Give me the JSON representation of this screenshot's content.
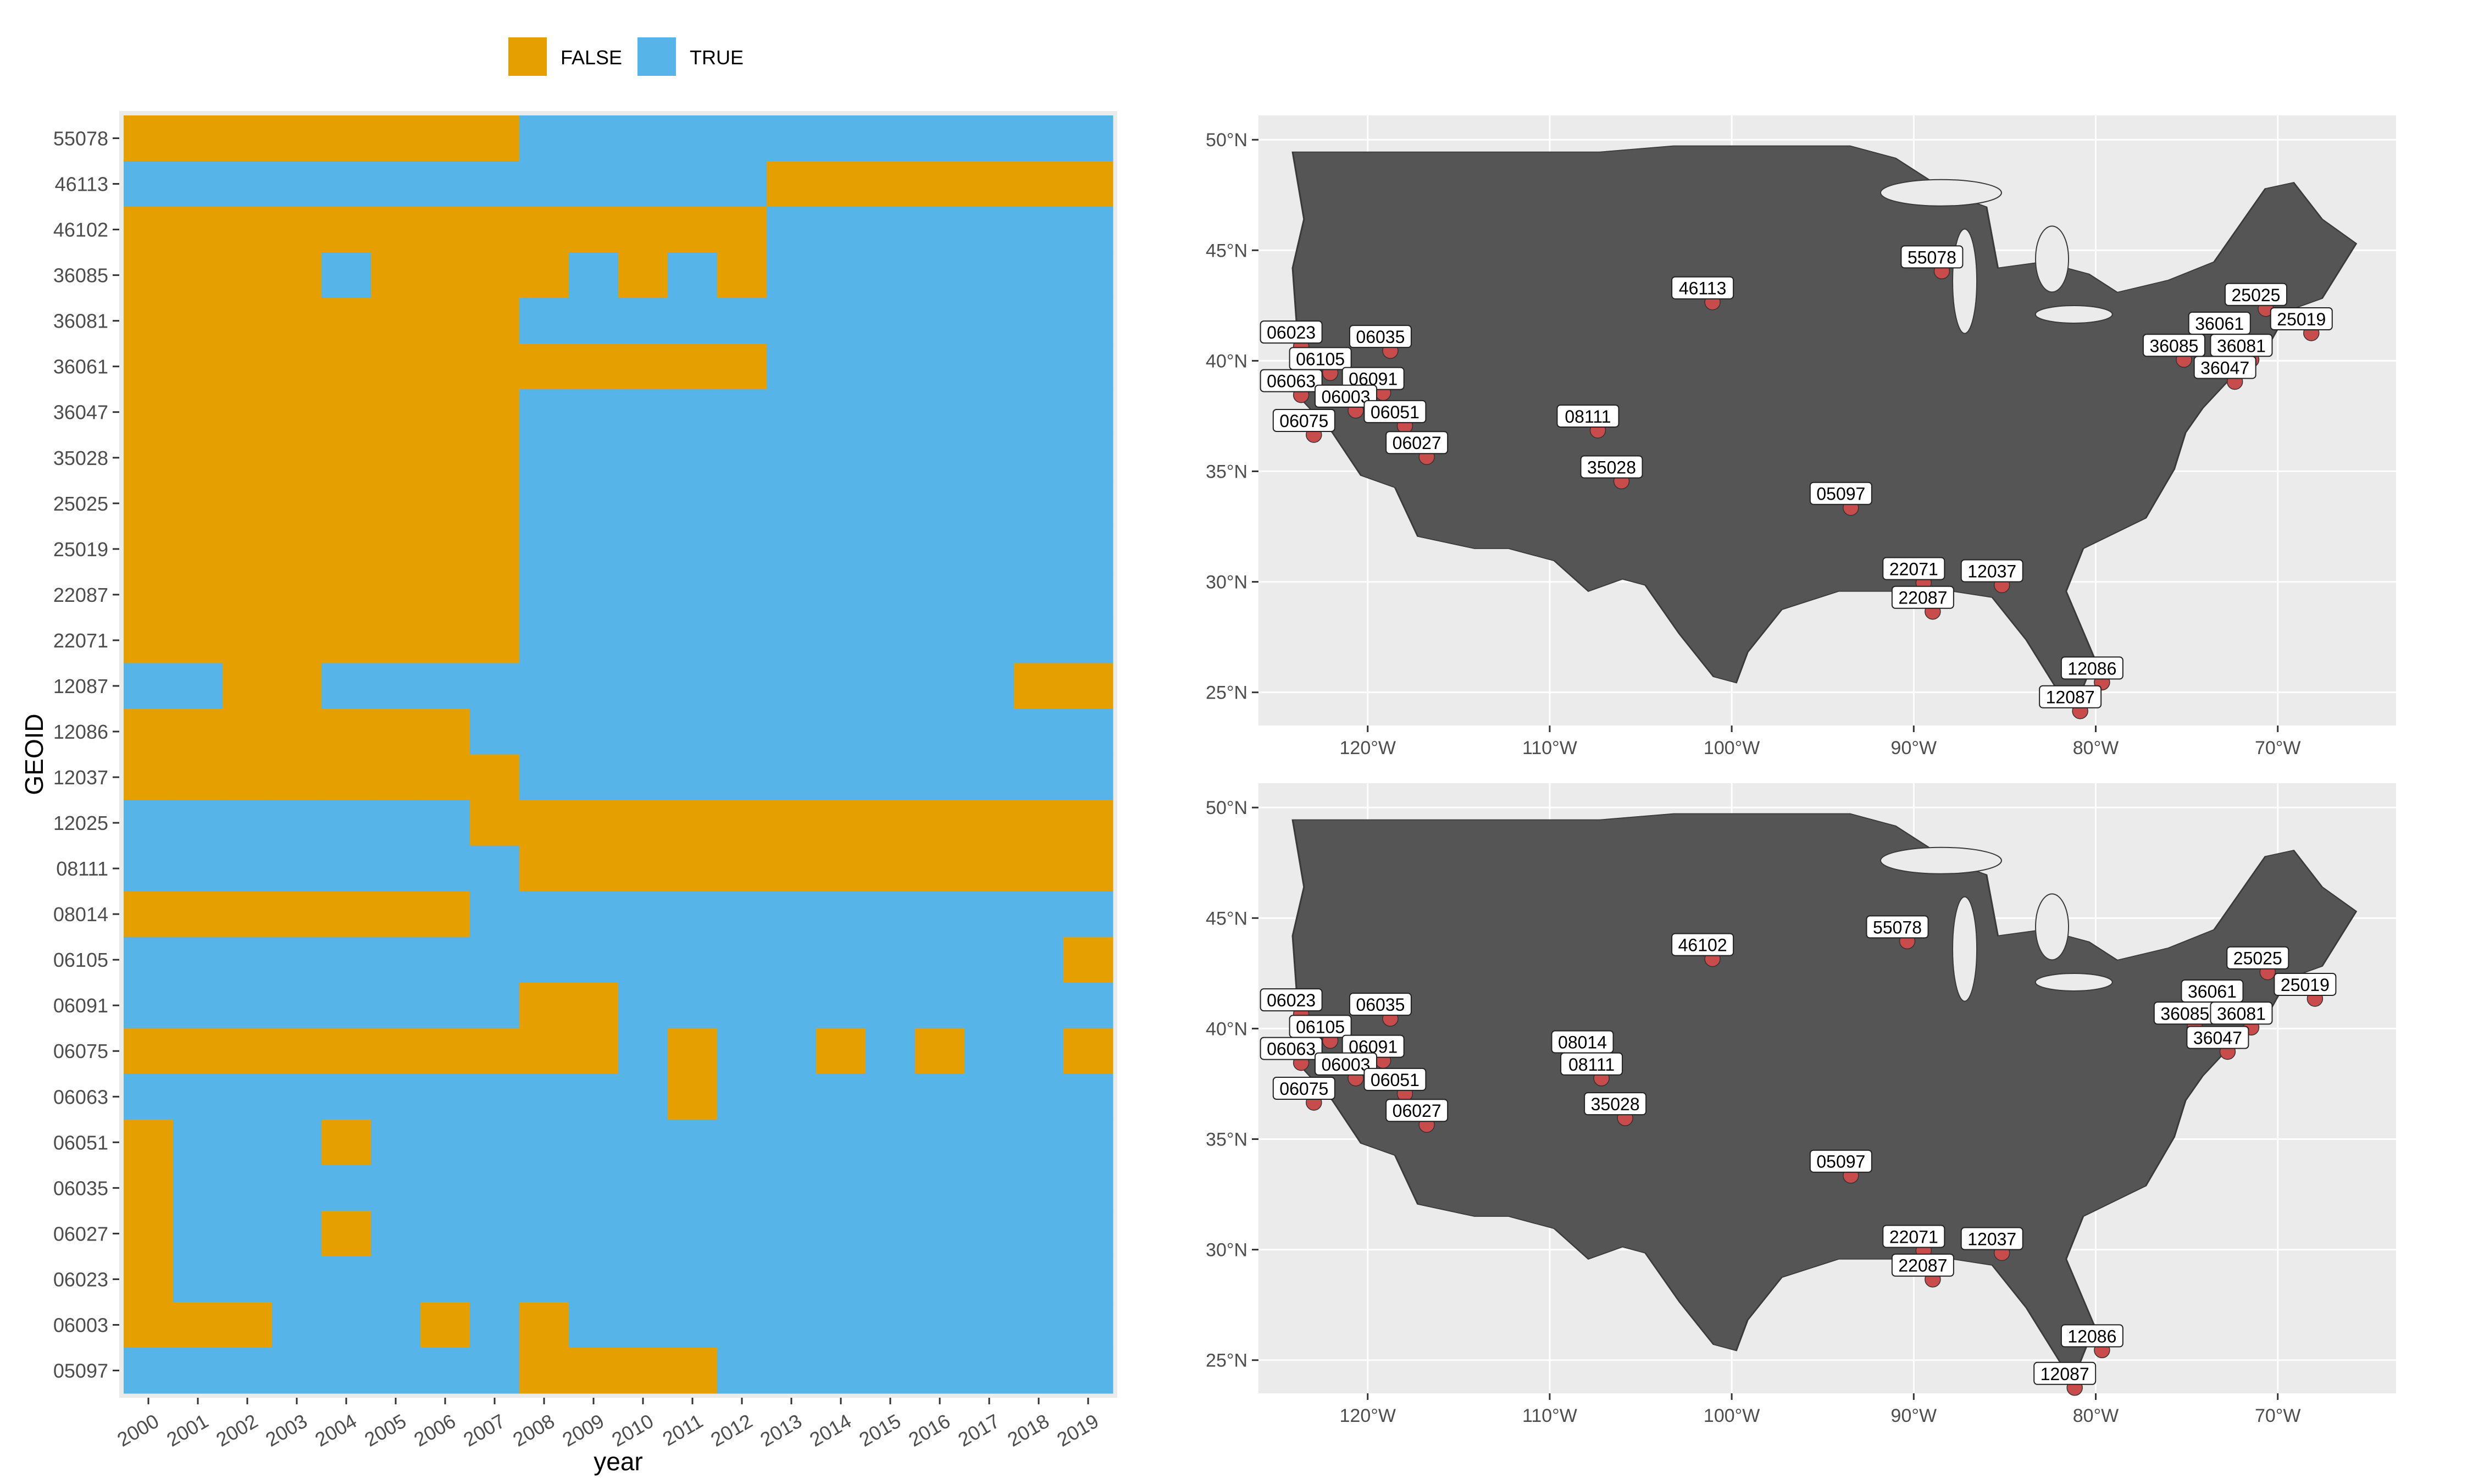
{
  "chart_data": [
    {
      "type": "heatmap",
      "xlabel": "year",
      "ylabel": "GEOID",
      "x": [
        "2000",
        "2001",
        "2002",
        "2003",
        "2004",
        "2005",
        "2006",
        "2007",
        "2008",
        "2009",
        "2010",
        "2011",
        "2012",
        "2013",
        "2014",
        "2015",
        "2016",
        "2017",
        "2018",
        "2019"
      ],
      "y": [
        "55078",
        "46113",
        "46102",
        "36085",
        "36081",
        "36061",
        "36047",
        "35028",
        "25025",
        "25019",
        "22087",
        "22071",
        "12087",
        "12086",
        "12037",
        "12025",
        "08111",
        "08014",
        "06105",
        "06091",
        "06075",
        "06063",
        "06051",
        "06035",
        "06027",
        "06023",
        "06003",
        "05097"
      ],
      "legend": {
        "position": "top",
        "entries": [
          "FALSE",
          "TRUE"
        ]
      },
      "colors": {
        "FALSE": "#E69F00",
        "TRUE": "#56B4E9"
      },
      "values": [
        [
          0,
          0,
          0,
          0,
          0,
          0,
          0,
          0,
          1,
          1,
          1,
          1,
          1,
          1,
          1,
          1,
          1,
          1,
          1,
          1
        ],
        [
          1,
          1,
          1,
          1,
          1,
          1,
          1,
          1,
          1,
          1,
          1,
          1,
          1,
          0,
          0,
          0,
          0,
          0,
          0,
          0
        ],
        [
          0,
          0,
          0,
          0,
          0,
          0,
          0,
          0,
          0,
          0,
          0,
          0,
          0,
          1,
          1,
          1,
          1,
          1,
          1,
          1
        ],
        [
          0,
          0,
          0,
          0,
          1,
          0,
          0,
          0,
          0,
          1,
          0,
          1,
          0,
          1,
          1,
          1,
          1,
          1,
          1,
          1
        ],
        [
          0,
          0,
          0,
          0,
          0,
          0,
          0,
          0,
          1,
          1,
          1,
          1,
          1,
          1,
          1,
          1,
          1,
          1,
          1,
          1
        ],
        [
          0,
          0,
          0,
          0,
          0,
          0,
          0,
          0,
          0,
          0,
          0,
          0,
          0,
          1,
          1,
          1,
          1,
          1,
          1,
          1
        ],
        [
          0,
          0,
          0,
          0,
          0,
          0,
          0,
          0,
          1,
          1,
          1,
          1,
          1,
          1,
          1,
          1,
          1,
          1,
          1,
          1
        ],
        [
          0,
          0,
          0,
          0,
          0,
          0,
          0,
          0,
          1,
          1,
          1,
          1,
          1,
          1,
          1,
          1,
          1,
          1,
          1,
          1
        ],
        [
          0,
          0,
          0,
          0,
          0,
          0,
          0,
          0,
          1,
          1,
          1,
          1,
          1,
          1,
          1,
          1,
          1,
          1,
          1,
          1
        ],
        [
          0,
          0,
          0,
          0,
          0,
          0,
          0,
          0,
          1,
          1,
          1,
          1,
          1,
          1,
          1,
          1,
          1,
          1,
          1,
          1
        ],
        [
          0,
          0,
          0,
          0,
          0,
          0,
          0,
          0,
          1,
          1,
          1,
          1,
          1,
          1,
          1,
          1,
          1,
          1,
          1,
          1
        ],
        [
          0,
          0,
          0,
          0,
          0,
          0,
          0,
          0,
          1,
          1,
          1,
          1,
          1,
          1,
          1,
          1,
          1,
          1,
          1,
          1
        ],
        [
          1,
          1,
          0,
          0,
          1,
          1,
          1,
          1,
          1,
          1,
          1,
          1,
          1,
          1,
          1,
          1,
          1,
          1,
          0,
          0
        ],
        [
          0,
          0,
          0,
          0,
          0,
          0,
          0,
          1,
          1,
          1,
          1,
          1,
          1,
          1,
          1,
          1,
          1,
          1,
          1,
          1
        ],
        [
          0,
          0,
          0,
          0,
          0,
          0,
          0,
          0,
          1,
          1,
          1,
          1,
          1,
          1,
          1,
          1,
          1,
          1,
          1,
          1
        ],
        [
          1,
          1,
          1,
          1,
          1,
          1,
          1,
          0,
          0,
          0,
          0,
          0,
          0,
          0,
          0,
          0,
          0,
          0,
          0,
          0
        ],
        [
          1,
          1,
          1,
          1,
          1,
          1,
          1,
          1,
          0,
          0,
          0,
          0,
          0,
          0,
          0,
          0,
          0,
          0,
          0,
          0
        ],
        [
          0,
          0,
          0,
          0,
          0,
          0,
          0,
          1,
          1,
          1,
          1,
          1,
          1,
          1,
          1,
          1,
          1,
          1,
          1,
          1
        ],
        [
          1,
          1,
          1,
          1,
          1,
          1,
          1,
          1,
          1,
          1,
          1,
          1,
          1,
          1,
          1,
          1,
          1,
          1,
          1,
          0
        ],
        [
          1,
          1,
          1,
          1,
          1,
          1,
          1,
          1,
          0,
          0,
          1,
          1,
          1,
          1,
          1,
          1,
          1,
          1,
          1,
          1
        ],
        [
          0,
          0,
          0,
          0,
          0,
          0,
          0,
          0,
          0,
          0,
          1,
          0,
          1,
          1,
          0,
          1,
          0,
          1,
          1,
          0
        ],
        [
          1,
          1,
          1,
          1,
          1,
          1,
          1,
          1,
          1,
          1,
          1,
          0,
          1,
          1,
          1,
          1,
          1,
          1,
          1,
          1
        ],
        [
          0,
          1,
          1,
          1,
          0,
          1,
          1,
          1,
          1,
          1,
          1,
          1,
          1,
          1,
          1,
          1,
          1,
          1,
          1,
          1
        ],
        [
          0,
          1,
          1,
          1,
          1,
          1,
          1,
          1,
          1,
          1,
          1,
          1,
          1,
          1,
          1,
          1,
          1,
          1,
          1,
          1
        ],
        [
          0,
          1,
          1,
          1,
          0,
          1,
          1,
          1,
          1,
          1,
          1,
          1,
          1,
          1,
          1,
          1,
          1,
          1,
          1,
          1
        ],
        [
          0,
          1,
          1,
          1,
          1,
          1,
          1,
          1,
          1,
          1,
          1,
          1,
          1,
          1,
          1,
          1,
          1,
          1,
          1,
          1
        ],
        [
          0,
          0,
          0,
          1,
          1,
          1,
          0,
          1,
          0,
          1,
          1,
          1,
          1,
          1,
          1,
          1,
          1,
          1,
          1,
          1
        ],
        [
          1,
          1,
          1,
          1,
          1,
          1,
          1,
          1,
          0,
          0,
          0,
          0,
          1,
          1,
          1,
          1,
          1,
          1,
          1,
          1
        ]
      ]
    },
    {
      "type": "map",
      "x_ticks": [
        -120,
        -110,
        -100,
        -90,
        -80,
        -70
      ],
      "x_tick_labels": [
        "120°W",
        "110°W",
        "100°W",
        "90°W",
        "80°W",
        "70°W"
      ],
      "y_ticks": [
        25,
        30,
        35,
        40,
        45,
        50
      ],
      "y_tick_labels": [
        "25°N",
        "30°N",
        "35°N",
        "40°N",
        "45°N",
        "50°N"
      ],
      "xlim": [
        -126,
        -63.5
      ],
      "ylim": [
        23.5,
        51.1
      ],
      "highlight_color": "#C94C4C",
      "labels": [
        {
          "text": "55078",
          "lon": -89.0,
          "lat": 44.7
        },
        {
          "text": "46113",
          "lon": -101.6,
          "lat": 43.3
        },
        {
          "text": "06023",
          "lon": -124.2,
          "lat": 41.3
        },
        {
          "text": "06035",
          "lon": -119.3,
          "lat": 41.1
        },
        {
          "text": "06105",
          "lon": -122.6,
          "lat": 40.1
        },
        {
          "text": "06091",
          "lon": -119.7,
          "lat": 39.2
        },
        {
          "text": "06063",
          "lon": -124.2,
          "lat": 39.1
        },
        {
          "text": "06003",
          "lon": -121.2,
          "lat": 38.4
        },
        {
          "text": "06051",
          "lon": -118.5,
          "lat": 37.7
        },
        {
          "text": "06075",
          "lon": -123.5,
          "lat": 37.3
        },
        {
          "text": "06027",
          "lon": -117.3,
          "lat": 36.3
        },
        {
          "text": "08111",
          "lon": -107.9,
          "lat": 37.5
        },
        {
          "text": "35028",
          "lon": -106.6,
          "lat": 35.2
        },
        {
          "text": "05097",
          "lon": -94.0,
          "lat": 34.0
        },
        {
          "text": "22071",
          "lon": -90.0,
          "lat": 30.6
        },
        {
          "text": "22087",
          "lon": -89.5,
          "lat": 29.3
        },
        {
          "text": "12037",
          "lon": -85.7,
          "lat": 30.5
        },
        {
          "text": "12086",
          "lon": -80.2,
          "lat": 26.1
        },
        {
          "text": "12087",
          "lon": -81.4,
          "lat": 24.8
        },
        {
          "text": "25025",
          "lon": -71.2,
          "lat": 43.0
        },
        {
          "text": "25019",
          "lon": -68.7,
          "lat": 41.9
        },
        {
          "text": "36061",
          "lon": -73.2,
          "lat": 41.7
        },
        {
          "text": "36085",
          "lon": -75.7,
          "lat": 40.7
        },
        {
          "text": "36081",
          "lon": -72.0,
          "lat": 40.7
        },
        {
          "text": "36047",
          "lon": -72.9,
          "lat": 39.7
        }
      ]
    },
    {
      "type": "map",
      "x_ticks": [
        -120,
        -110,
        -100,
        -90,
        -80,
        -70
      ],
      "x_tick_labels": [
        "120°W",
        "110°W",
        "100°W",
        "90°W",
        "80°W",
        "70°W"
      ],
      "y_ticks": [
        25,
        30,
        35,
        40,
        45,
        50
      ],
      "y_tick_labels": [
        "25°N",
        "30°N",
        "35°N",
        "40°N",
        "45°N",
        "50°N"
      ],
      "xlim": [
        -126,
        -63.5
      ],
      "ylim": [
        23.5,
        51.1
      ],
      "highlight_color": "#C94C4C",
      "labels": [
        {
          "text": "55078",
          "lon": -90.9,
          "lat": 44.6
        },
        {
          "text": "46102",
          "lon": -101.6,
          "lat": 43.8
        },
        {
          "text": "06023",
          "lon": -124.2,
          "lat": 41.3
        },
        {
          "text": "06035",
          "lon": -119.3,
          "lat": 41.1
        },
        {
          "text": "06105",
          "lon": -122.6,
          "lat": 40.1
        },
        {
          "text": "06091",
          "lon": -119.7,
          "lat": 39.2
        },
        {
          "text": "06063",
          "lon": -124.2,
          "lat": 39.1
        },
        {
          "text": "06003",
          "lon": -121.2,
          "lat": 38.4
        },
        {
          "text": "06051",
          "lon": -118.5,
          "lat": 37.7
        },
        {
          "text": "06075",
          "lon": -123.5,
          "lat": 37.3
        },
        {
          "text": "06027",
          "lon": -117.3,
          "lat": 36.3
        },
        {
          "text": "08014",
          "lon": -108.2,
          "lat": 39.4
        },
        {
          "text": "08111",
          "lon": -107.7,
          "lat": 38.4
        },
        {
          "text": "35028",
          "lon": -106.4,
          "lat": 36.6
        },
        {
          "text": "05097",
          "lon": -94.0,
          "lat": 34.0
        },
        {
          "text": "22071",
          "lon": -90.0,
          "lat": 30.6
        },
        {
          "text": "22087",
          "lon": -89.5,
          "lat": 29.3
        },
        {
          "text": "12037",
          "lon": -85.7,
          "lat": 30.5
        },
        {
          "text": "12086",
          "lon": -80.2,
          "lat": 26.1
        },
        {
          "text": "12087",
          "lon": -81.7,
          "lat": 24.4
        },
        {
          "text": "25025",
          "lon": -71.1,
          "lat": 43.2
        },
        {
          "text": "25019",
          "lon": -68.5,
          "lat": 42.0
        },
        {
          "text": "36061",
          "lon": -73.6,
          "lat": 41.7
        },
        {
          "text": "36085",
          "lon": -75.1,
          "lat": 40.7
        },
        {
          "text": "36081",
          "lon": -72.0,
          "lat": 40.7
        },
        {
          "text": "36047",
          "lon": -73.3,
          "lat": 39.6
        }
      ]
    }
  ]
}
